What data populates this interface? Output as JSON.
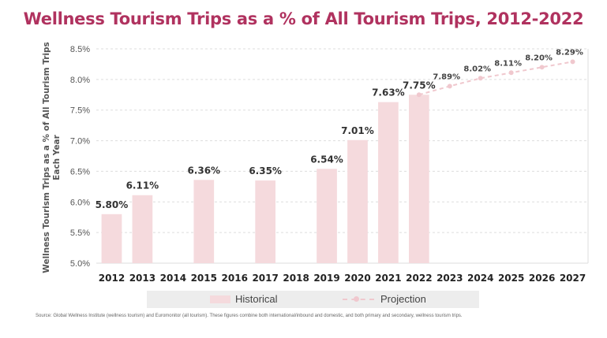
{
  "title": "Wellness Tourism Trips as a % of All Tourism Trips, 2012-2022",
  "source": "Source: Global Wellness Institute (wellness tourism) and Euromonitor (all tourism). These figures combine both international/inbound and domestic, and both primary and secondary, wellness tourism trips.",
  "colors": {
    "title": "#b0325f",
    "bar": "#f5dadd",
    "projection": "#f0c8ce",
    "grid": "#dddddd",
    "label": "#444444"
  },
  "chart_data": {
    "type": "bar",
    "title": "Wellness Tourism Trips as a % of All Tourism Trips, 2012-2022",
    "xlabel": "",
    "ylabel": "Wellness Tourism Trips as a % of All Tourism Trips Each Year",
    "ylim": [
      5.0,
      8.5
    ],
    "yticks": [
      "5.0%",
      "5.5%",
      "6.0%",
      "6.5%",
      "7.0%",
      "7.5%",
      "8.0%",
      "8.5%"
    ],
    "ytick_values": [
      5.0,
      5.5,
      6.0,
      6.5,
      7.0,
      7.5,
      8.0,
      8.5
    ],
    "grid": true,
    "categories": [
      "2012",
      "2013",
      "2014",
      "2015",
      "2016",
      "2017",
      "2018",
      "2019",
      "2020",
      "2021",
      "2022",
      "2023",
      "2024",
      "2025",
      "2026",
      "2027"
    ],
    "series": [
      {
        "name": "Historical",
        "kind": "bar",
        "points": [
          {
            "x": "2012",
            "y": 5.8,
            "label": "5.80%"
          },
          {
            "x": "2013",
            "y": 6.11,
            "label": "6.11%"
          },
          {
            "x": "2015",
            "y": 6.36,
            "label": "6.36%"
          },
          {
            "x": "2017",
            "y": 6.35,
            "label": "6.35%"
          },
          {
            "x": "2019",
            "y": 6.54,
            "label": "6.54%"
          },
          {
            "x": "2020",
            "y": 7.01,
            "label": "7.01%"
          },
          {
            "x": "2021",
            "y": 7.63,
            "label": "7.63%"
          },
          {
            "x": "2022",
            "y": 7.75,
            "label": "7.75%"
          }
        ]
      },
      {
        "name": "Projection",
        "kind": "line",
        "points": [
          {
            "x": "2022",
            "y": 7.75,
            "label": ""
          },
          {
            "x": "2023",
            "y": 7.89,
            "label": "7.89%"
          },
          {
            "x": "2024",
            "y": 8.02,
            "label": "8.02%"
          },
          {
            "x": "2025",
            "y": 8.11,
            "label": "8.11%"
          },
          {
            "x": "2026",
            "y": 8.2,
            "label": "8.20%"
          },
          {
            "x": "2027",
            "y": 8.29,
            "label": "8.29%"
          }
        ]
      }
    ],
    "legend": [
      "Historical",
      "Projection"
    ],
    "legend_position": "bottom"
  }
}
